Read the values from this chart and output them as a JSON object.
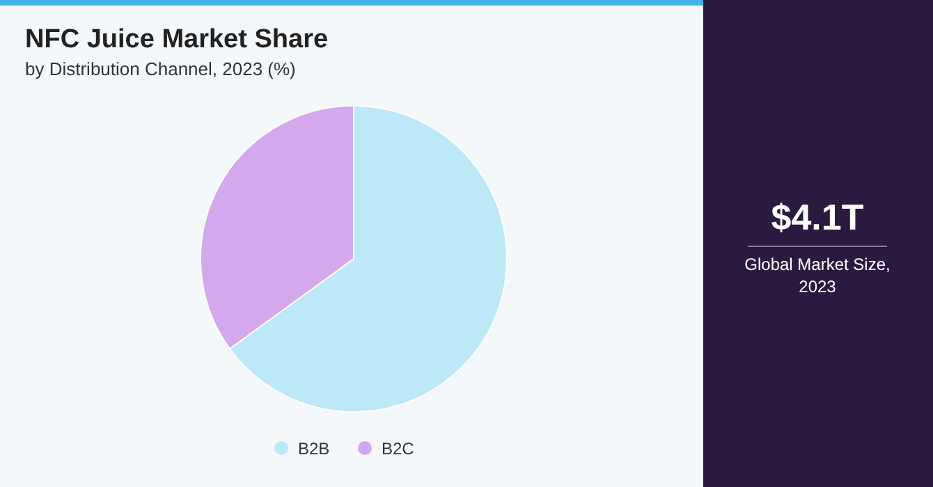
{
  "chart_data": [
    {
      "type": "pie",
      "title": "NFC Juice Market Share",
      "subtitle": "by Distribution Channel, 2023 (%)",
      "categories": [
        "B2B",
        "B2C"
      ],
      "values": [
        65,
        35
      ],
      "colors": [
        "#bde8f8",
        "#d4a8ec"
      ],
      "legend": "bottom"
    },
    {
      "type": "other",
      "title": "$4.1T",
      "subtitle": "Global Market Size, 2023"
    }
  ]
}
